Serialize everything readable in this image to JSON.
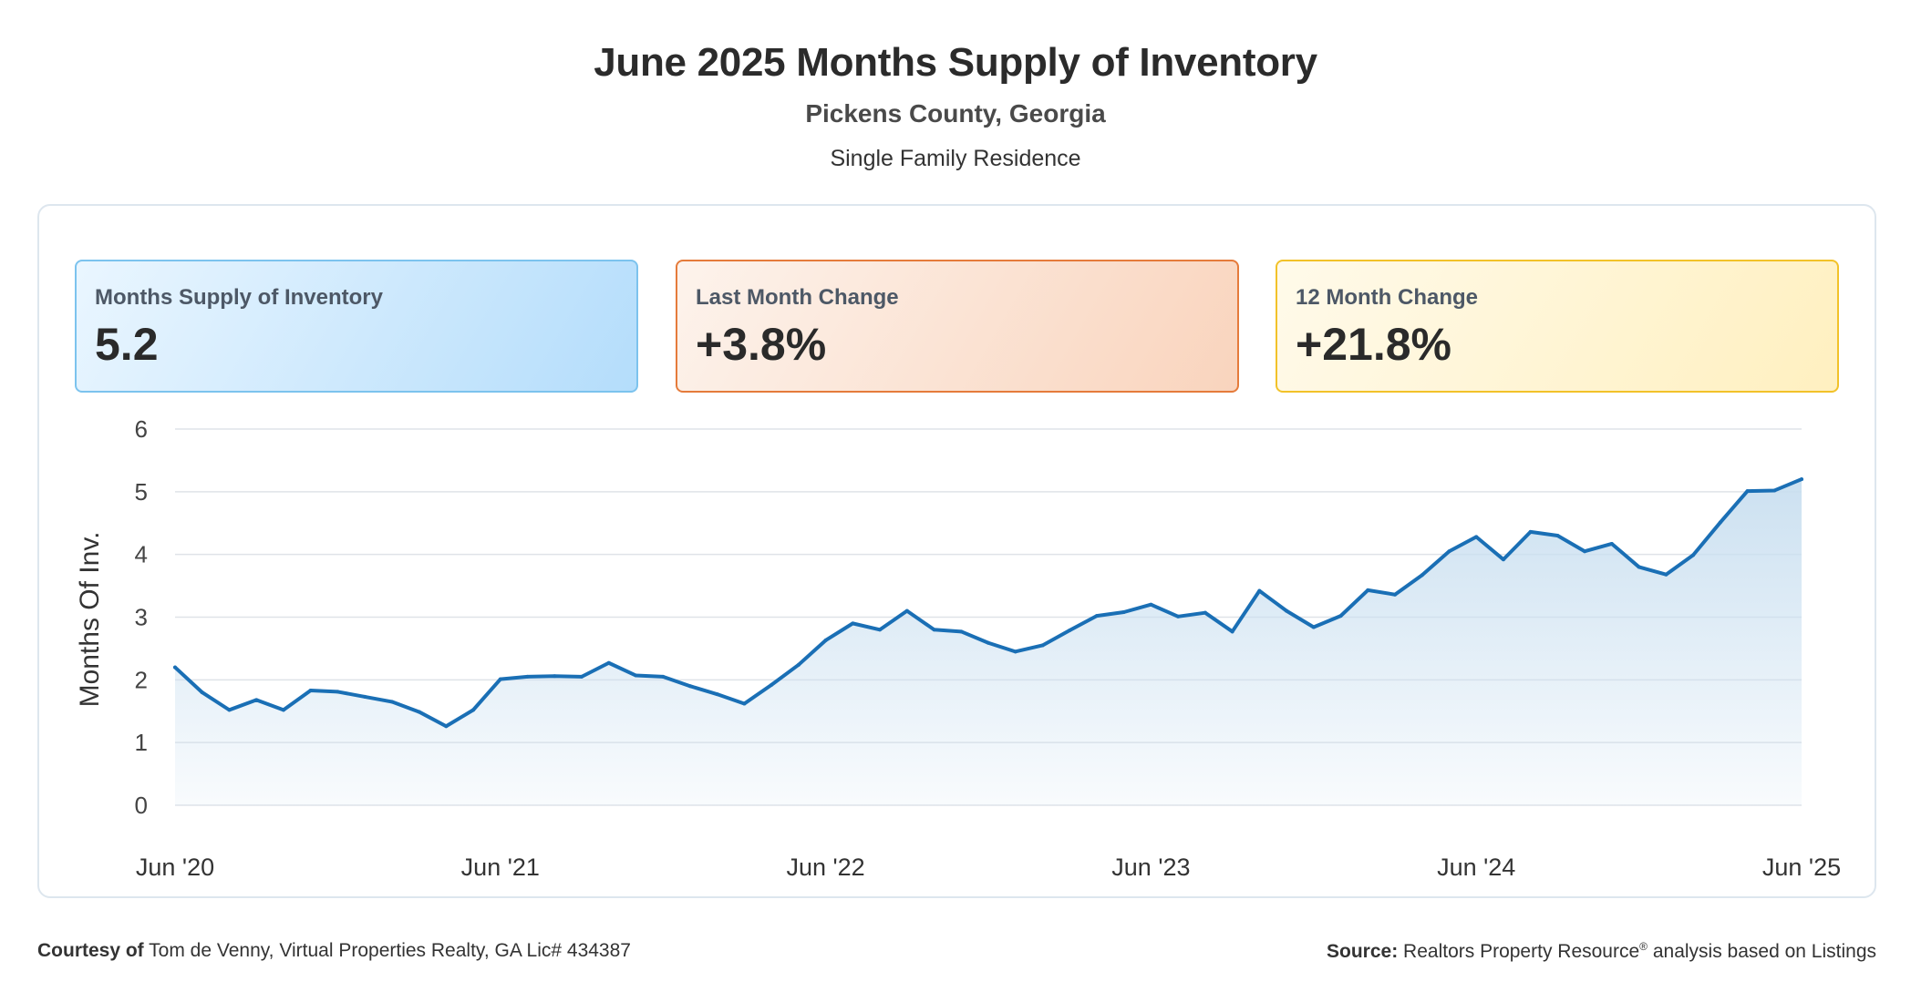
{
  "header": {
    "title": "June 2025 Months Supply of Inventory",
    "subtitle": "Pickens County, Georgia",
    "property_type": "Single Family Residence"
  },
  "cards": [
    {
      "label": "Months Supply of Inventory",
      "value": "5.2"
    },
    {
      "label": "Last Month Change",
      "value": "+3.8%"
    },
    {
      "label": "12 Month Change",
      "value": "+21.8%"
    }
  ],
  "colors": {
    "line": "#1a6fb5",
    "area_top": "#c9dff0",
    "grid": "#dfe3e8"
  },
  "chart_data": {
    "type": "area",
    "title": "",
    "ylabel": "Months Of Inv.",
    "xlabel": "",
    "ylim": [
      0,
      6
    ],
    "yticks": [
      "0",
      "1",
      "2",
      "3",
      "4",
      "5",
      "6"
    ],
    "xtick_labels": [
      "Jun '20",
      "Jun '21",
      "Jun '22",
      "Jun '23",
      "Jun '24",
      "Jun '25"
    ],
    "grid": true,
    "series": [
      {
        "values": [
          2.2,
          1.8,
          1.52,
          1.68,
          1.52,
          1.83,
          1.81,
          1.73,
          1.65,
          1.49,
          1.26,
          1.52,
          2.01,
          2.05,
          2.06,
          2.05,
          2.27,
          2.07,
          2.05,
          1.9,
          1.77,
          1.62,
          1.92,
          2.24,
          2.63,
          2.9,
          2.8,
          3.1,
          2.8,
          2.77,
          2.59,
          2.45,
          2.55,
          2.79,
          3.02,
          3.08,
          3.2,
          3.01,
          3.07,
          2.77,
          3.42,
          3.1,
          2.84,
          3.02,
          3.43,
          3.36,
          3.67,
          4.05,
          4.28,
          3.92,
          4.36,
          4.3,
          4.05,
          4.17,
          3.8,
          3.68,
          3.99,
          4.51,
          5.01,
          5.02,
          5.2
        ]
      }
    ]
  },
  "footer": {
    "courtesy_label": "Courtesy of",
    "courtesy_text": "Tom de Venny, Virtual Properties Realty, GA Lic# 434387",
    "source_label": "Source:",
    "source_text": "Realtors Property Resource",
    "source_reg": "®",
    "source_suffix": "analysis based on Listings"
  }
}
